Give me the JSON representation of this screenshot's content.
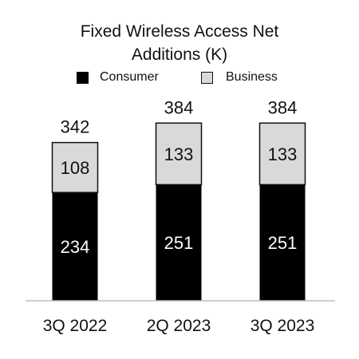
{
  "chart_data": {
    "type": "bar",
    "stacked": true,
    "title": "Fixed Wireless Access Net Additions (K)",
    "title_lines": [
      "Fixed Wireless Access Net",
      "Additions (K)"
    ],
    "categories": [
      "3Q 2022",
      "2Q 2023",
      "3Q 2023"
    ],
    "series": [
      {
        "name": "Consumer",
        "values": [
          234,
          251,
          251
        ],
        "color": "#000000",
        "label_color": "#ffffff"
      },
      {
        "name": "Business",
        "values": [
          108,
          133,
          133
        ],
        "color": "#d9d9d9",
        "label_color": "#111111"
      }
    ],
    "totals": [
      342,
      384,
      384
    ],
    "xlabel": "",
    "ylabel": "",
    "ylim": [
      0,
      420
    ],
    "grid": false,
    "legend_position": "top-center"
  }
}
